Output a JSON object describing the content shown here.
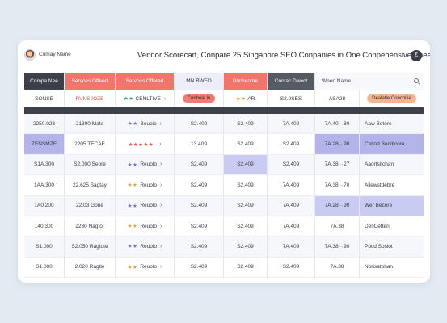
{
  "window": {
    "company_label": "Comay Name",
    "title": "Vendor Scorecart, Conpare 25 Singapore SEO Conpanies in One Conpehensive Sheet",
    "user_badge": "€"
  },
  "colors": {
    "dark": "#3c4048",
    "coral": "#f0766b",
    "lavender": "#e4e7f8",
    "highlight": "#b3b4ea",
    "pill_orange": "#f7b58b"
  },
  "table": {
    "headers": [
      "Compa Nee",
      "Servces Offeed",
      "Servces Offered",
      "MN BWED",
      "Pricheome",
      "Contac Dwect",
      "Wnen Name",
      ""
    ],
    "search_icon": "search-icon",
    "subheader": {
      "c1": "SONSE",
      "c2": "RVNS2OZE",
      "c3_stars": "★★",
      "c3_text": "CENLTIVE",
      "c3_chev": "›",
      "c4_pill": "Conbeie lo",
      "c5_stars": "★★",
      "c5_text": "AR",
      "c6": "S2.0SES",
      "c7": "ASA28",
      "c8_pill": "Dealatle Conchitie"
    },
    "rows": [
      {
        "c1": "2250.023",
        "c2": "21390 Mate",
        "stars": "★★",
        "rating": "Beuoio",
        "c4": "S2.409",
        "c5": "S2.409",
        "c6": "7A.409",
        "c7": "7A.40",
        "c7b": "80",
        "c8": "Aaw Betore"
      },
      {
        "c1": "ZENSMZE",
        "c2": "2205 TECAE",
        "stars": "★★★★★",
        "rating": "",
        "c4": "13.409",
        "c5": "S2.409",
        "c6": "S2.409",
        "c7": "7A.28",
        "c7b": "90",
        "c8": "Cetiod Beniticore"
      },
      {
        "c1": "S1A.300",
        "c2": "S2.000 Seore",
        "stars": "★★",
        "rating": "Reuolo",
        "c4": "S2.409",
        "c5": "S2.409",
        "c6": "S2.409",
        "c7": "7A.38",
        "c7b": "27",
        "c8": "Aaortsitchan"
      },
      {
        "c1": "1AA.300",
        "c2": "22.625 Sagtay",
        "stars": "★★",
        "rating": "Reuolo",
        "c4": "S2.409",
        "c5": "S2.409",
        "c6": "7A.409",
        "c7": "7A.38",
        "c7b": "70",
        "c8": "Allewstdebre"
      },
      {
        "c1": "1A0.200",
        "c2": "22.03 Gone",
        "stars": "★★",
        "rating": "Reuolo",
        "c4": "S2.409",
        "c5": "S2.409",
        "c6": "7A.409",
        "c7": "7A.28",
        "c7b": "90",
        "c8": "Wer Becore"
      },
      {
        "c1": "140.300",
        "c2": "2230 Nagtot",
        "stars": "★★",
        "rating": "Reuolo",
        "c4": "S2.409",
        "c5": "S2.409",
        "c6": "7A.409",
        "c7": "7A.38",
        "c7b": "",
        "c8": "DesCetten"
      },
      {
        "c1": "S1.000",
        "c2": "S2.050 Ragtote",
        "stars": "★★",
        "rating": "Reuolo",
        "c4": "S2.409",
        "c5": "S2.409",
        "c6": "7A.409",
        "c7": "7A.38",
        "c7b": "90",
        "c8": "Potid Soslot"
      },
      {
        "c1": "S1.000",
        "c2": "2.020 Ragtle",
        "stars": "★★",
        "rating": "Reuolo",
        "c4": "S2.409",
        "c5": "S2.409",
        "c6": "S2.409",
        "c7": "7A.38",
        "c7b": "",
        "c8": "Norisatohan"
      }
    ]
  }
}
